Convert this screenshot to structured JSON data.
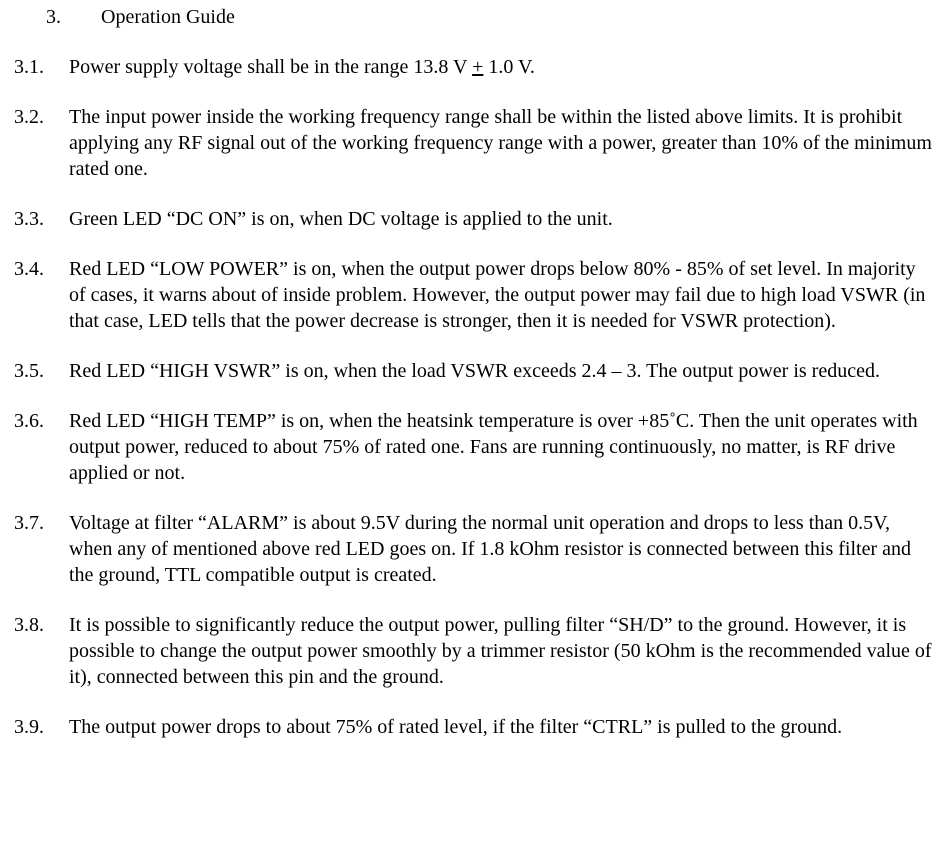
{
  "doc": {
    "font_family": "Times New Roman",
    "font_size_pt": 15,
    "text_color": "#000000",
    "background_color": "#ffffff"
  },
  "title": {
    "num": "3.",
    "text": "Operation Guide"
  },
  "items": [
    {
      "num": "3.1.",
      "parts": [
        {
          "t": "Power supply voltage shall be in the range 13.8 V "
        },
        {
          "t": "+",
          "u": true
        },
        {
          "t": " 1.0 V."
        }
      ]
    },
    {
      "num": "3.2.",
      "parts": [
        {
          "t": "The input power inside the working frequency range shall be within the listed above limits.  It is prohibit applying any RF signal out of the working frequency range with a power, greater than 10% of the minimum rated one."
        }
      ]
    },
    {
      "num": "3.3.",
      "parts": [
        {
          "t": "Green LED “DC ON” is on, when DC voltage is applied to the unit."
        }
      ]
    },
    {
      "num": "3.4.",
      "parts": [
        {
          "t": "Red LED “LOW POWER” is on, when the output power drops below 80% - 85% of set level. In majority of cases, it warns about of inside problem. However, the output power may fail due to high load VSWR (in that case, LED tells that the power decrease is stronger, then it is needed for VSWR protection)."
        }
      ]
    },
    {
      "num": "3.5.",
      "parts": [
        {
          "t": "Red LED “HIGH VSWR” is on, when the load VSWR exceeds 2.4 – 3. The output power is reduced."
        }
      ]
    },
    {
      "num": "3.6.",
      "parts": [
        {
          "t": "Red LED “HIGH TEMP” is on, when the heatsink temperature is over +85˚C. Then the unit operates with output power, reduced to about 75% of rated one. Fans are running continuously, no matter, is RF drive applied or not."
        }
      ]
    },
    {
      "num": "3.7.",
      "parts": [
        {
          "t": "Voltage at filter “ALARM” is about 9.5V during the normal unit operation and drops to less than 0.5V, when any of mentioned above red LED goes on. If 1.8 kOhm resistor is connected between this filter and the ground, TTL compatible output is created."
        }
      ]
    },
    {
      "num": "3.8.",
      "parts": [
        {
          "t": "It is possible to significantly reduce the output power, pulling filter “SH/D” to the ground. However, it is possible to change the output power smoothly by a trimmer resistor (50 kOhm is  the recommended value of it), connected between this pin and the ground."
        }
      ]
    },
    {
      "num": "3.9.",
      "parts": [
        {
          "t": "The output power drops to about 75% of rated level, if the filter “CTRL” is pulled to the ground."
        }
      ]
    }
  ]
}
